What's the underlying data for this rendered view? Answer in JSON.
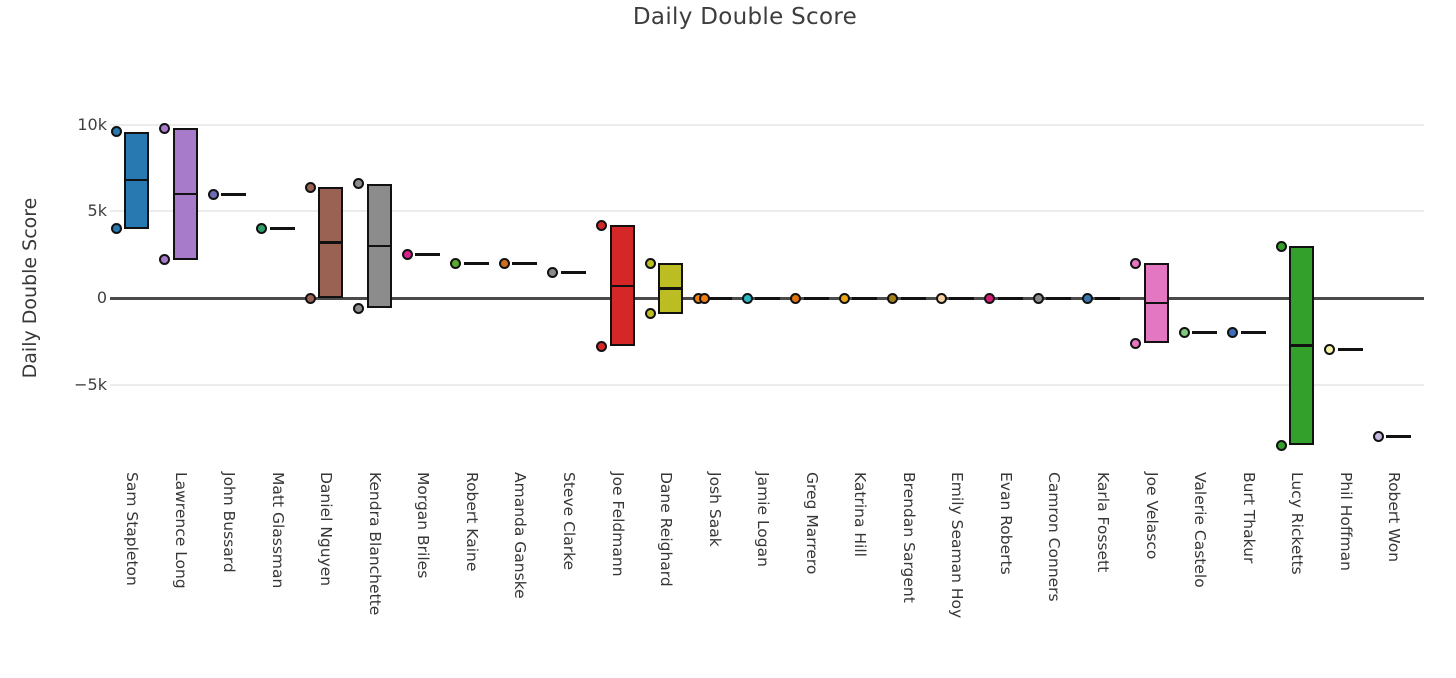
{
  "title": "Daily Double Score",
  "y_axis": {
    "label": "Daily Double Score",
    "ticks": [
      {
        "label": "10k",
        "value": 10000
      },
      {
        "label": "5k",
        "value": 5000
      },
      {
        "label": "0",
        "value": 0
      },
      {
        "label": "−5k",
        "value": -5000
      }
    ]
  },
  "chart_data": {
    "type": "box",
    "title": "Daily Double Score",
    "xlabel": "",
    "ylabel": "Daily Double Score",
    "orientation": "vertical",
    "grid": true,
    "zero_line": true,
    "legend_position": "none",
    "ylim": [
      -9300,
      10800
    ],
    "yticks": [
      {
        "label": "10k",
        "value": 10000
      },
      {
        "label": "5k",
        "value": 5000
      },
      {
        "label": "0",
        "value": 0
      },
      {
        "label": "−5k",
        "value": -5000
      }
    ],
    "categories": [
      "Sam Stapleton",
      "Lawrence Long",
      "John Bussard",
      "Matt Glassman",
      "Daniel Nguyen",
      "Kendra Blanchette",
      "Morgan Briles",
      "Robert Kaine",
      "Amanda Ganske",
      "Steve Clarke",
      "Joe Feldmann",
      "Dane Reighard",
      "Josh Saak",
      "Jamie Logan",
      "Greg Marrero",
      "Katrina Hill",
      "Brendan Sargent",
      "Emily Seaman Hoy",
      "Evan Roberts",
      "Camron Conners",
      "Karla Fossett",
      "Joe Velasco",
      "Valerie Castelo",
      "Burt Thakur",
      "Lucy Ricketts",
      "Phil Hoffman",
      "Robert Won"
    ],
    "series": [
      {
        "name": "Sam Stapleton",
        "color": "#2878B2",
        "points": [
          9600,
          4000
        ],
        "min": 4000,
        "median": 6800,
        "max": 9600
      },
      {
        "name": "Lawrence Long",
        "color": "#A77BC9",
        "points": [
          9800,
          2200
        ],
        "min": 2200,
        "median": 6000,
        "max": 9800
      },
      {
        "name": "John Bussard",
        "color": "#6F6BB5",
        "points": [
          6000
        ],
        "min": 6000,
        "median": 6000,
        "max": 6000
      },
      {
        "name": "Matt Glassman",
        "color": "#2DA06A",
        "points": [
          4000
        ],
        "min": 4000,
        "median": 4000,
        "max": 4000
      },
      {
        "name": "Daniel Nguyen",
        "color": "#9A6253",
        "points": [
          6400,
          0
        ],
        "min": 0,
        "median": 3200,
        "max": 6400
      },
      {
        "name": "Kendra Blanchette",
        "color": "#8C8C8C",
        "points": [
          6600,
          -600
        ],
        "min": -600,
        "median": 3000,
        "max": 6600
      },
      {
        "name": "Morgan Briles",
        "color": "#D6218A",
        "points": [
          2500
        ],
        "min": 2500,
        "median": 2500,
        "max": 2500
      },
      {
        "name": "Robert Kaine",
        "color": "#5BA930",
        "points": [
          2000
        ],
        "min": 2000,
        "median": 2000,
        "max": 2000
      },
      {
        "name": "Amanda Ganske",
        "color": "#CE6F1F",
        "points": [
          2000
        ],
        "min": 2000,
        "median": 2000,
        "max": 2000
      },
      {
        "name": "Steve Clarke",
        "color": "#8A8A8A",
        "points": [
          1500
        ],
        "min": 1500,
        "median": 1500,
        "max": 1500
      },
      {
        "name": "Joe Feldmann",
        "color": "#D62728",
        "points": [
          4200,
          -2800
        ],
        "min": -2800,
        "median": 700,
        "max": 4200
      },
      {
        "name": "Dane Reighard",
        "color": "#BCBD22",
        "points": [
          2000,
          -900
        ],
        "min": -900,
        "median": 550,
        "max": 2000
      },
      {
        "name": "Josh Saak",
        "color": "#F07F10",
        "points": [
          0,
          0
        ],
        "min": 0,
        "median": 0,
        "max": 0
      },
      {
        "name": "Jamie Logan",
        "color": "#29B8C8",
        "points": [
          0
        ],
        "min": 0,
        "median": 0,
        "max": 0
      },
      {
        "name": "Greg Marrero",
        "color": "#E2740D",
        "points": [
          0
        ],
        "min": 0,
        "median": 0,
        "max": 0
      },
      {
        "name": "Katrina Hill",
        "color": "#E8A713",
        "points": [
          0
        ],
        "min": 0,
        "median": 0,
        "max": 0
      },
      {
        "name": "Brendan Sargent",
        "color": "#A3801A",
        "points": [
          0
        ],
        "min": 0,
        "median": 0,
        "max": 0
      },
      {
        "name": "Emily Seaman Hoy",
        "color": "#F5CFA0",
        "points": [
          0
        ],
        "min": 0,
        "median": 0,
        "max": 0
      },
      {
        "name": "Evan Roberts",
        "color": "#D31E78",
        "points": [
          0
        ],
        "min": 0,
        "median": 0,
        "max": 0
      },
      {
        "name": "Camron Conners",
        "color": "#8B8B8B",
        "points": [
          0
        ],
        "min": 0,
        "median": 0,
        "max": 0
      },
      {
        "name": "Karla Fossett",
        "color": "#3C76AF",
        "points": [
          0
        ],
        "min": 0,
        "median": 0,
        "max": 0
      },
      {
        "name": "Joe Velasco",
        "color": "#E377C2",
        "points": [
          2000,
          -2600
        ],
        "min": -2600,
        "median": -300,
        "max": 2000
      },
      {
        "name": "Valerie Castelo",
        "color": "#7CC87C",
        "points": [
          -2000
        ],
        "min": -2000,
        "median": -2000,
        "max": -2000
      },
      {
        "name": "Burt Thakur",
        "color": "#3C6DB5",
        "points": [
          -2000
        ],
        "min": -2000,
        "median": -2000,
        "max": -2000
      },
      {
        "name": "Lucy Ricketts",
        "color": "#33A02C",
        "points": [
          3000,
          -8500
        ],
        "min": -8500,
        "median": -2750,
        "max": 3000
      },
      {
        "name": "Phil Hoffman",
        "color": "#F5F2A8",
        "points": [
          -3000
        ],
        "min": -3000,
        "median": -3000,
        "max": -3000
      },
      {
        "name": "Robert Won",
        "color": "#C3B8E0",
        "points": [
          -8000
        ],
        "min": -8000,
        "median": -8000,
        "max": -8000
      }
    ]
  }
}
